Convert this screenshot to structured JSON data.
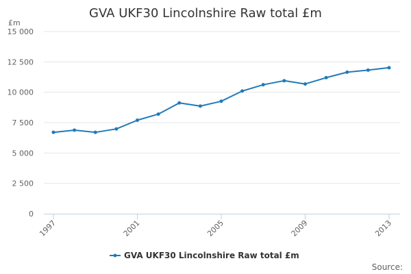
{
  "chart_data": {
    "type": "line",
    "title": "GVA UKF30 Lincolnshire Raw total £m",
    "ylabel": "£m",
    "xlabel": "",
    "ylim": [
      0,
      15000
    ],
    "yticks": [
      0,
      2500,
      5000,
      7500,
      10000,
      12500,
      15000
    ],
    "ytick_labels": [
      "0",
      "2 500",
      "5 000",
      "7 500",
      "10 000",
      "12 500",
      "15 000"
    ],
    "xlim": [
      1997,
      2013
    ],
    "xtick_labels": [
      "1997",
      "2001",
      "2005",
      "2009",
      "2013"
    ],
    "grid": true,
    "legend": "bottom-center",
    "series": [
      {
        "name": "GVA UKF30 Lincolnshire Raw total £m",
        "color": "#1f7ab8",
        "x": [
          1997,
          1998,
          1999,
          2000,
          2001,
          2002,
          2003,
          2004,
          2005,
          2006,
          2007,
          2008,
          2009,
          2010,
          2011,
          2012,
          2013
        ],
        "values": [
          6700,
          6880,
          6700,
          6980,
          7700,
          8200,
          9120,
          8860,
          9260,
          10100,
          10620,
          10950,
          10680,
          11200,
          11650,
          11820,
          12020
        ]
      }
    ],
    "source_label": "Source:"
  }
}
